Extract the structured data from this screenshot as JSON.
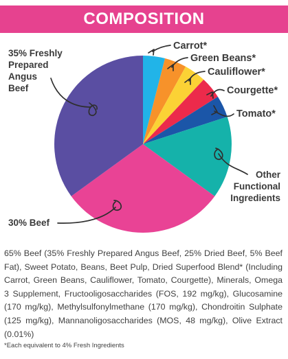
{
  "header": {
    "title": "COMPOSITION"
  },
  "chart_data": {
    "type": "pie",
    "slices": [
      {
        "label": "Carrot*",
        "value": 4,
        "color": "#21b4e8"
      },
      {
        "label": "Green Beans*",
        "value": 4,
        "color": "#f7922a"
      },
      {
        "label": "Cauliflower*",
        "value": 4,
        "color": "#fbd235"
      },
      {
        "label": "Courgette*",
        "value": 4,
        "color": "#ec2a4b"
      },
      {
        "label": "Tomato*",
        "value": 4,
        "color": "#1b56a8"
      },
      {
        "label": "Other Functional Ingredients",
        "value": 15,
        "color": "#15b2aa"
      },
      {
        "label": "30% Beef",
        "value": 30,
        "color": "#e94395"
      },
      {
        "label": "35% Freshly Prepared Angus Beef",
        "value": 35,
        "color": "#5a4ea2"
      }
    ],
    "callout_lines": {
      "angus": [
        "35% Freshly",
        "Prepared",
        "Angus",
        "Beef"
      ],
      "other": [
        "Other",
        "Functional",
        "Ingredients"
      ]
    }
  },
  "composition_text": "65% Beef (35% Freshly Prepared Angus Beef, 25% Dried Beef, 5% Beef Fat), Sweet Potato, Beans, Beet Pulp, Dried Superfood Blend* (Including Carrot, Green Beans, Cauliflower, Tomato, Courgette), Minerals, Omega 3 Supplement, Fructooligosaccharides (FOS, 192 mg/kg), Glucosamine (170 mg/kg), Methylsulfonylmethane (170 mg/kg), Chondroitin Sulphate (125 mg/kg), Mannanoligosaccharides (MOS, 48 mg/kg), Olive Extract (0.01%)",
  "footnote": "*Each equivalent to 4% Fresh Ingredients"
}
